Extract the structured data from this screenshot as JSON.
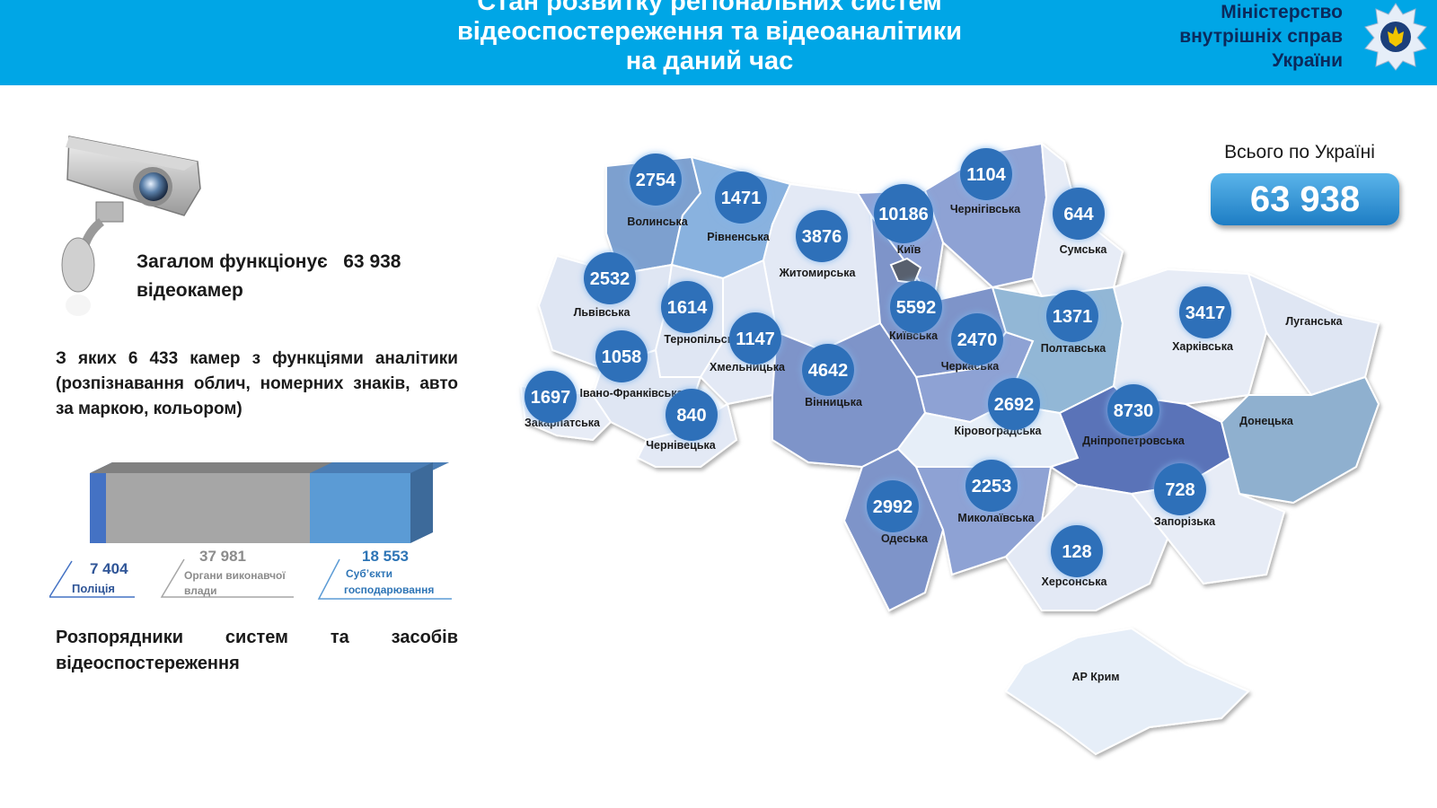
{
  "header": {
    "title_lines": [
      "Стан розвитку регіональних систем",
      "відеоспостереження та відеоаналітики",
      "на даний час"
    ],
    "ministry_lines": [
      "Міністерство",
      "внутрішніх справ",
      "України"
    ],
    "colors": {
      "banner": "#00a6e6",
      "ministry_text": "#0b2a5c"
    },
    "emblem_icon": "police-emblem-icon"
  },
  "left": {
    "camera_icon": "cctv-camera-icon",
    "total_line1": "Загалом функціонує   63 938",
    "total_line2": "відеокамер",
    "analytics_text": "З яких 6 433 камер з функціями аналітики (розпізнавання облич, номерних знаків, авто за маркою, кольором)",
    "distributors_line1": "Розпорядники систем та засобів",
    "distributors_line2": "відеоспостереження"
  },
  "distribution": {
    "segments": [
      {
        "value_text": "7 404",
        "value": 7404,
        "label_lines": [
          "Поліція"
        ],
        "color": "#4472c4"
      },
      {
        "value_text": "37 981",
        "value": 37981,
        "label_lines": [
          "Органи виконавчої",
          "влади"
        ],
        "color": "#a6a6a6"
      },
      {
        "value_text": "18 553",
        "value": 18553,
        "label_lines": [
          "Суб’єкти",
          "господарювання"
        ],
        "color": "#5b9bd5"
      }
    ]
  },
  "map": {
    "total_label": "Всього по Україні",
    "total_value": "63 938",
    "colors": {
      "bubble": "#2f6fb9",
      "bubble_text": "#ffffff",
      "region_label": "#1a1a1a"
    },
    "regions": [
      {
        "name": "Волинська",
        "count": "2754"
      },
      {
        "name": "Рівненська",
        "count": "1471"
      },
      {
        "name": "Житомирська",
        "count": "3876"
      },
      {
        "name": "Київ",
        "count": "10186"
      },
      {
        "name": "Чернігівська",
        "count": "1104"
      },
      {
        "name": "Сумська",
        "count": "644"
      },
      {
        "name": "Львівська",
        "count": "2532"
      },
      {
        "name": "Тернопільська",
        "count": "1614"
      },
      {
        "name": "Хмельницька",
        "count": "1147"
      },
      {
        "name": "Київська",
        "count": "5592"
      },
      {
        "name": "Черкаська",
        "count": "2470"
      },
      {
        "name": "Полтавська",
        "count": "1371"
      },
      {
        "name": "Харківська",
        "count": "3417"
      },
      {
        "name": "Луганська",
        "count": ""
      },
      {
        "name": "Івано-Франківська",
        "count": "1058"
      },
      {
        "name": "Закарпатська",
        "count": "1697"
      },
      {
        "name": "Чернівецька",
        "count": "840"
      },
      {
        "name": "Вінницька",
        "count": "4642"
      },
      {
        "name": "Кіровоградська",
        "count": "2692"
      },
      {
        "name": "Дніпропетровська",
        "count": "8730"
      },
      {
        "name": "Донецька",
        "count": ""
      },
      {
        "name": "Одеська",
        "count": "2992"
      },
      {
        "name": "Миколаївська",
        "count": "2253"
      },
      {
        "name": "Запорізька",
        "count": "728"
      },
      {
        "name": "Херсонська",
        "count": "128"
      },
      {
        "name": "АР Крим",
        "count": ""
      }
    ]
  }
}
